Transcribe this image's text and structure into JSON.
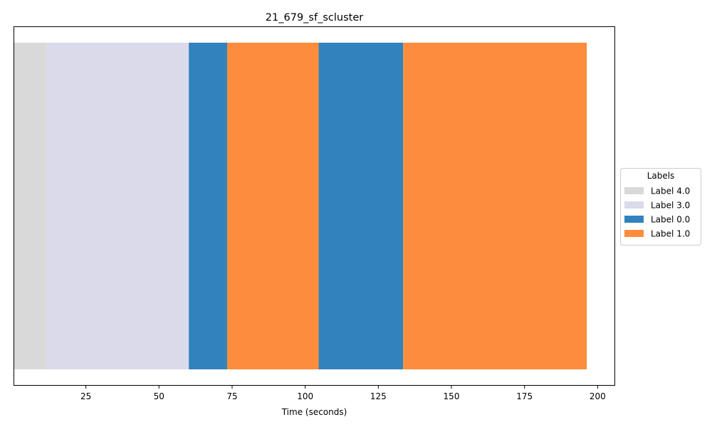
{
  "chart_data": {
    "type": "bar",
    "orientation": "horizontal-timeline",
    "title": "21_679_sf_scluster",
    "xlabel": "Time (seconds)",
    "ylabel": "",
    "xlim": [
      0.5,
      206
    ],
    "xticks": [
      25,
      50,
      75,
      100,
      125,
      150,
      175,
      200
    ],
    "segments": [
      {
        "label": "Label 4.0",
        "start": 0.5,
        "end": 11.5
      },
      {
        "label": "Label 3.0",
        "start": 11.5,
        "end": 60.2
      },
      {
        "label": "Label 0.0",
        "start": 60.2,
        "end": 73.3
      },
      {
        "label": "Label 1.0",
        "start": 73.3,
        "end": 104.6
      },
      {
        "label": "Label 0.0",
        "start": 104.6,
        "end": 133.5
      },
      {
        "label": "Label 1.0",
        "start": 133.5,
        "end": 196.3
      }
    ],
    "legend": {
      "title": "Labels",
      "placement": "right-center",
      "entries": [
        {
          "label": "Label 4.0",
          "color": "#d9d9d9"
        },
        {
          "label": "Label 3.0",
          "color": "#dadaeb"
        },
        {
          "label": "Label 0.0",
          "color": "#3182bd"
        },
        {
          "label": "Label 1.0",
          "color": "#fd8d3c"
        }
      ]
    }
  }
}
